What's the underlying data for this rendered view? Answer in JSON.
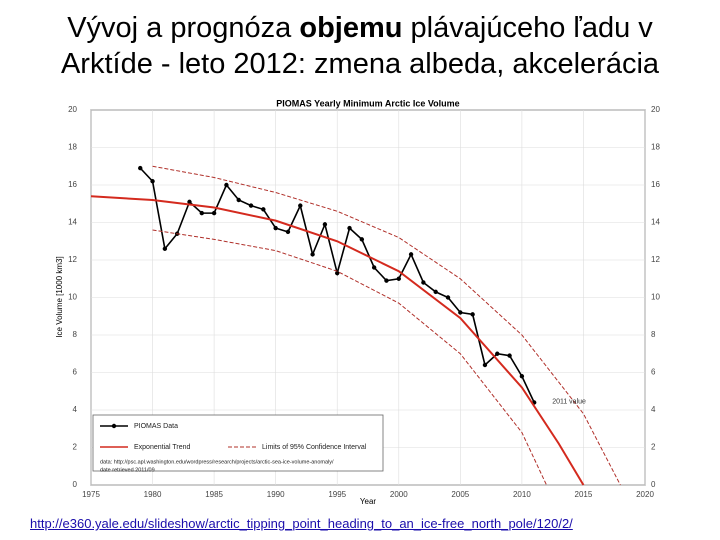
{
  "slide_title": {
    "line1": [
      "Vývoj a prognóza ",
      "objemu",
      " plávajúceho ľadu v"
    ],
    "line2": "Arktíde - leto 2012: zmena albeda, akcelerácia"
  },
  "link": "http://e360.yale.edu/slideshow/arctic_tipping_point_heading_to_an_ice-free_north_pole/120/2/",
  "chart_data": {
    "type": "line",
    "title": "PIOMAS Yearly Minimum Arctic Ice Volume",
    "x_label": "Year",
    "y_label": "Ice Volume [1000 km3]",
    "xlim": [
      1975,
      2020
    ],
    "xticks": [
      1975,
      1980,
      1985,
      1990,
      1995,
      2000,
      2005,
      2010,
      2015,
      2020
    ],
    "ylim": [
      0,
      20
    ],
    "yticks": [
      0,
      2,
      4,
      6,
      8,
      10,
      12,
      14,
      16,
      18,
      20
    ],
    "series": [
      {
        "name": "PIOMAS Data",
        "color": "#000000",
        "marker": true,
        "x": [
          1979,
          1980,
          1981,
          1982,
          1983,
          1984,
          1985,
          1986,
          1987,
          1988,
          1989,
          1990,
          1991,
          1992,
          1993,
          1994,
          1995,
          1996,
          1997,
          1998,
          1999,
          2000,
          2001,
          2002,
          2003,
          2004,
          2005,
          2006,
          2007,
          2008,
          2009,
          2010,
          2011
        ],
        "values": [
          16.9,
          16.2,
          12.6,
          13.4,
          15.1,
          14.5,
          14.5,
          16.0,
          15.2,
          14.9,
          14.7,
          13.7,
          13.5,
          14.9,
          12.3,
          13.9,
          11.3,
          13.7,
          13.1,
          11.6,
          10.9,
          11.0,
          12.3,
          10.8,
          10.3,
          10.0,
          9.2,
          9.1,
          6.4,
          7.0,
          6.9,
          5.8,
          4.4
        ]
      },
      {
        "name": "Exponential Trend",
        "color": "#d42a1e",
        "x": [
          1975,
          1980,
          1985,
          1990,
          1995,
          2000,
          2005,
          2010,
          2013,
          2015
        ],
        "values": [
          15.4,
          15.2,
          14.8,
          14.1,
          13.0,
          11.4,
          8.9,
          5.2,
          2.2,
          0
        ]
      },
      {
        "name": "Limits of 95% Confidence Interval",
        "color": "#b0302a",
        "dash": true,
        "x": [
          1980,
          1985,
          1990,
          1995,
          2000,
          2005,
          2010,
          2015,
          2018
        ],
        "values": [
          17.0,
          16.4,
          15.6,
          14.6,
          13.2,
          11.0,
          8.0,
          3.8,
          0
        ]
      },
      {
        "name": "Limits of 95% Confidence Interval",
        "color": "#b0302a",
        "dash": true,
        "x": [
          1980,
          1985,
          1990,
          1995,
          2000,
          2005,
          2010,
          2012
        ],
        "values": [
          13.6,
          13.1,
          12.5,
          11.4,
          9.7,
          7.0,
          2.8,
          0
        ]
      }
    ],
    "annotation": "2011 value",
    "source": [
      "data: http://psc.apl.washington.edu/wordpress/research/projects/arctic-sea-ice-volume-anomaly/",
      "date retrieved 2011/09"
    ]
  }
}
